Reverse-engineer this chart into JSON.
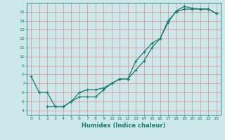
{
  "xlabel": "Humidex (Indice chaleur)",
  "background_color": "#cce8ea",
  "grid_color": "#e08080",
  "line_color": "#1a7a6e",
  "xlim": [
    -0.5,
    23.5
  ],
  "ylim": [
    3.5,
    16.0
  ],
  "yticks": [
    4,
    5,
    6,
    7,
    8,
    9,
    10,
    11,
    12,
    13,
    14,
    15
  ],
  "xticks": [
    0,
    1,
    2,
    3,
    4,
    5,
    6,
    7,
    8,
    9,
    10,
    11,
    12,
    13,
    14,
    15,
    16,
    17,
    18,
    19,
    20,
    21,
    22,
    23
  ],
  "line1_x": [
    0,
    1,
    2,
    3,
    4,
    5,
    6,
    7,
    8,
    9,
    10,
    11,
    12,
    13,
    14,
    15,
    16,
    17,
    18,
    19,
    20,
    21,
    22,
    23
  ],
  "line1_y": [
    7.8,
    6.0,
    6.0,
    4.4,
    4.4,
    5.0,
    6.0,
    6.3,
    6.3,
    6.5,
    7.0,
    7.5,
    7.5,
    8.5,
    9.5,
    11.0,
    12.0,
    13.8,
    15.1,
    15.6,
    15.4,
    15.3,
    15.3,
    14.8
  ],
  "line2_x": [
    2,
    3,
    4,
    5,
    6,
    7,
    8,
    9,
    10,
    11,
    12,
    13,
    14,
    15,
    16,
    17,
    18,
    19,
    20,
    21,
    22,
    23
  ],
  "line2_y": [
    4.4,
    4.4,
    4.4,
    5.0,
    5.5,
    5.5,
    5.5,
    6.3,
    7.0,
    7.5,
    7.5,
    9.5,
    10.5,
    11.5,
    12.0,
    14.0,
    15.0,
    15.3,
    15.3,
    15.3,
    15.3,
    14.8
  ]
}
